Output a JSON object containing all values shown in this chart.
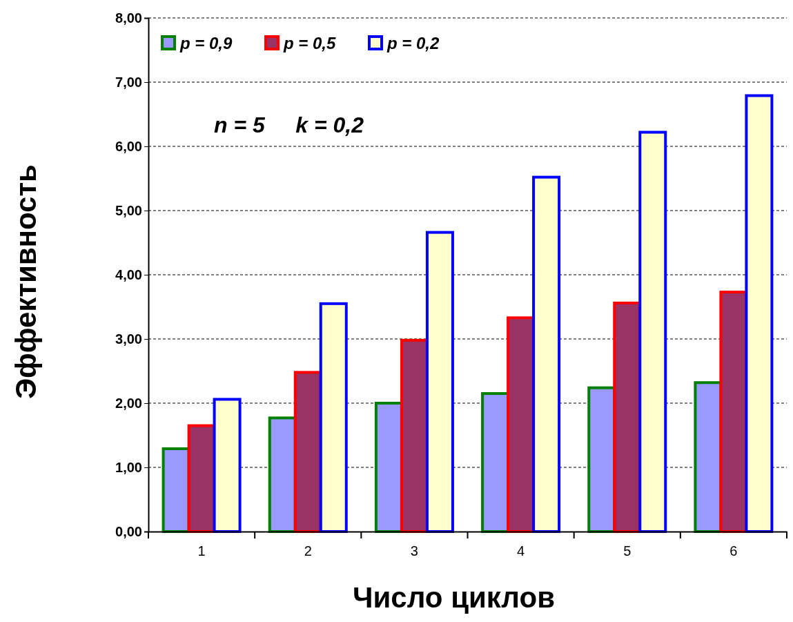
{
  "chart_data": {
    "type": "bar",
    "xlabel": "Число циклов",
    "ylabel": "Эффективность",
    "categories": [
      "1",
      "2",
      "3",
      "4",
      "5",
      "6"
    ],
    "series": [
      {
        "name": "p = 0,9",
        "color": "#9999ff",
        "values": [
          1.29,
          1.77,
          2.0,
          2.15,
          2.24,
          2.32
        ]
      },
      {
        "name": "p = 0,5",
        "color": "#993366",
        "values": [
          1.65,
          2.48,
          2.98,
          3.33,
          3.56,
          3.73
        ]
      },
      {
        "name": "p = 0,2",
        "color": "#ffffcc",
        "values": [
          2.06,
          3.55,
          4.66,
          5.52,
          6.22,
          6.79
        ]
      }
    ],
    "ylim": [
      0,
      8
    ],
    "yticks": [
      {
        "value": 0,
        "label": "0,00"
      },
      {
        "value": 1,
        "label": "1,00"
      },
      {
        "value": 2,
        "label": "2,00"
      },
      {
        "value": 3,
        "label": "3,00"
      },
      {
        "value": 4,
        "label": "4,00"
      },
      {
        "value": 5,
        "label": "5,00"
      },
      {
        "value": 6,
        "label": "6,00"
      },
      {
        "value": 7,
        "label": "7,00"
      },
      {
        "value": 8,
        "label": "8,00"
      }
    ],
    "grid": "y",
    "legend": "top left",
    "annotations": [
      "n = 5     k = 0,2"
    ]
  }
}
